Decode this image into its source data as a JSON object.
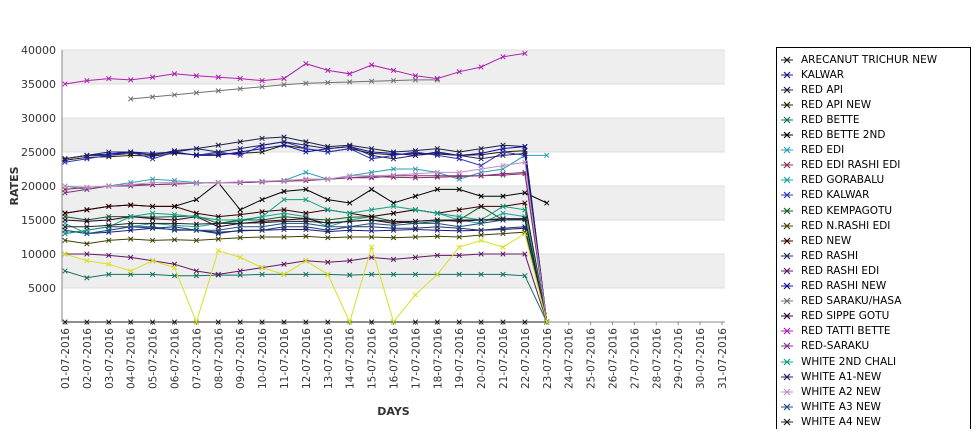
{
  "chart_data": {
    "type": "line",
    "title": "",
    "xlabel": "DAYS",
    "ylabel": "RATES",
    "ylim": [
      0,
      40000
    ],
    "yticks": [
      5000,
      10000,
      15000,
      20000,
      25000,
      30000,
      35000,
      40000
    ],
    "grid": "alternating horizontal bands",
    "legend_placement": "right",
    "categories": [
      "01-07-2016",
      "02-07-2016",
      "03-07-2016",
      "04-07-2016",
      "05-07-2016",
      "06-07-2016",
      "07-07-2016",
      "08-07-2016",
      "09-07-2016",
      "10-07-2016",
      "11-07-2016",
      "12-07-2016",
      "13-07-2016",
      "14-07-2016",
      "15-07-2016",
      "16-07-2016",
      "17-07-2016",
      "18-07-2016",
      "19-07-2016",
      "20-07-2016",
      "21-07-2016",
      "22-07-2016",
      "23-07-2016",
      "24-07-2016",
      "25-07-2016",
      "26-07-2016",
      "27-07-2016",
      "28-07-2016",
      "29-07-2016",
      "30-07-2016",
      "31-07-2016"
    ],
    "series": [
      {
        "name": "ARECANUT TRICHUR NEW",
        "color": "#1a1a1a",
        "values": [
          0,
          0,
          0,
          0,
          0,
          0,
          0,
          0,
          0,
          0,
          0,
          0,
          0,
          0,
          0,
          0,
          0,
          0,
          0,
          0,
          0,
          0,
          0,
          null,
          null,
          null,
          null,
          null,
          null,
          null,
          null
        ]
      },
      {
        "name": "KALWAR",
        "color": "#1a1a80",
        "values": [
          13500,
          13000,
          13200,
          13500,
          13800,
          13600,
          13500,
          13200,
          13400,
          13500,
          13600,
          13600,
          13300,
          13500,
          13400,
          13500,
          13600,
          13500,
          13400,
          13500,
          13600,
          13800,
          0,
          null,
          null,
          null,
          null,
          null,
          null,
          null,
          null
        ]
      },
      {
        "name": "RED API",
        "color": "#1a2040",
        "values": [
          24000,
          24500,
          24500,
          24800,
          24600,
          25000,
          25500,
          26000,
          26500,
          27000,
          27200,
          26500,
          25800,
          26000,
          25500,
          25000,
          25200,
          25500,
          25000,
          25500,
          26000,
          25800,
          0,
          null,
          null,
          null,
          null,
          null,
          null,
          null,
          null
        ]
      },
      {
        "name": "RED API NEW",
        "color": "#202000",
        "values": [
          23800,
          24200,
          24300,
          24500,
          24400,
          24800,
          24600,
          24700,
          24800,
          25000,
          26000,
          25500,
          25000,
          25500,
          24800,
          24600,
          24800,
          24700,
          24500,
          24600,
          25000,
          25200,
          0,
          null,
          null,
          null,
          null,
          null,
          null,
          null,
          null
        ]
      },
      {
        "name": "RED BETTE",
        "color": "#107060",
        "values": [
          7500,
          6500,
          7000,
          7000,
          7000,
          6800,
          6800,
          6900,
          6900,
          7000,
          7000,
          7000,
          7000,
          6900,
          7000,
          7000,
          7000,
          7000,
          7000,
          7000,
          7000,
          6800,
          0,
          null,
          null,
          null,
          null,
          null,
          null,
          null,
          null
        ]
      },
      {
        "name": "RED BETTE 2ND",
        "color": "#000000",
        "values": [
          16000,
          16500,
          17000,
          17200,
          17000,
          17000,
          18000,
          20500,
          16500,
          18000,
          19200,
          19500,
          18000,
          17500,
          19500,
          17500,
          18500,
          19500,
          19500,
          18500,
          18500,
          19000,
          17500,
          null,
          null,
          null,
          null,
          null,
          null,
          null,
          null
        ]
      },
      {
        "name": "RED EDI",
        "color": "#2aa0b0",
        "values": [
          20000,
          19500,
          20000,
          20500,
          21000,
          20800,
          20500,
          20500,
          20500,
          20700,
          20800,
          22000,
          21000,
          21500,
          22000,
          22500,
          22500,
          22000,
          21000,
          22000,
          22500,
          24500,
          24500,
          null,
          null,
          null,
          null,
          null,
          null,
          null,
          null
        ]
      },
      {
        "name": "RED EDI RASHI EDI",
        "color": "#803060",
        "values": [
          19500,
          19800,
          20000,
          20200,
          20200,
          20300,
          20400,
          20500,
          20500,
          20600,
          20700,
          20800,
          21000,
          21200,
          21400,
          21300,
          21200,
          21300,
          21400,
          21500,
          21600,
          21800,
          0,
          null,
          null,
          null,
          null,
          null,
          null,
          null,
          null
        ]
      },
      {
        "name": "RED GORABALU",
        "color": "#20a0a0",
        "values": [
          14500,
          13000,
          13500,
          14000,
          14500,
          14200,
          14000,
          14500,
          14800,
          15500,
          16000,
          15500,
          14000,
          15000,
          15500,
          16000,
          16500,
          16000,
          15000,
          14500,
          16000,
          15500,
          0,
          null,
          null,
          null,
          null,
          null,
          null,
          null,
          null
        ]
      },
      {
        "name": "RED KALWAR",
        "color": "#3030c0",
        "values": [
          23500,
          24000,
          24500,
          25000,
          24000,
          25000,
          24500,
          25000,
          24500,
          26000,
          26500,
          25500,
          25000,
          25500,
          24000,
          24500,
          25000,
          24500,
          24000,
          23000,
          25000,
          24500,
          0,
          null,
          null,
          null,
          null,
          null,
          null,
          null,
          null
        ]
      },
      {
        "name": "RED KEMPAGOTU",
        "color": "#106020",
        "values": [
          15500,
          15000,
          15500,
          15500,
          15400,
          15500,
          15600,
          14500,
          15000,
          15000,
          15500,
          15200,
          15000,
          15400,
          15500,
          14800,
          14500,
          14800,
          15000,
          17000,
          15000,
          15200,
          0,
          null,
          null,
          null,
          null,
          null,
          null,
          null,
          null
        ]
      },
      {
        "name": "RED N.RASHI EDI",
        "color": "#404000",
        "values": [
          12000,
          11500,
          12000,
          12200,
          12000,
          12100,
          12000,
          12200,
          12400,
          12500,
          12500,
          12600,
          12400,
          12500,
          12500,
          12400,
          12500,
          12600,
          12500,
          12800,
          13000,
          13200,
          0,
          null,
          null,
          null,
          null,
          null,
          null,
          null,
          null
        ]
      },
      {
        "name": "RED NEW",
        "color": "#300000",
        "values": [
          16000,
          16500,
          17000,
          17200,
          17000,
          17000,
          16000,
          15500,
          15800,
          16200,
          16500,
          16000,
          16500,
          16000,
          15500,
          16000,
          16500,
          16000,
          16500,
          17000,
          17000,
          17500,
          0,
          null,
          null,
          null,
          null,
          null,
          null,
          null,
          null
        ]
      },
      {
        "name": "RED RASHI",
        "color": "#203060",
        "values": [
          13000,
          13500,
          14000,
          14000,
          13800,
          14000,
          13500,
          13000,
          13500,
          13500,
          14000,
          14000,
          13500,
          14000,
          14000,
          13800,
          13800,
          14000,
          13800,
          13500,
          13800,
          14000,
          0,
          null,
          null,
          null,
          null,
          null,
          null,
          null,
          null
        ]
      },
      {
        "name": "RED RASHI EDI",
        "color": "#601860",
        "values": [
          10000,
          10000,
          9800,
          9500,
          9000,
          8500,
          7500,
          7000,
          7500,
          8000,
          8500,
          9000,
          8800,
          9000,
          9500,
          9200,
          9500,
          9800,
          9800,
          10000,
          10000,
          10000,
          0,
          null,
          null,
          null,
          null,
          null,
          null,
          null,
          null
        ]
      },
      {
        "name": "RED RASHI NEW",
        "color": "#1010a0",
        "values": [
          24000,
          24500,
          24700,
          25000,
          24800,
          25000,
          24500,
          24500,
          25000,
          25500,
          26000,
          25000,
          25500,
          25800,
          25000,
          24800,
          24500,
          25000,
          24500,
          24800,
          25500,
          25800,
          0,
          null,
          null,
          null,
          null,
          null,
          null,
          null,
          null
        ]
      },
      {
        "name": "RED SARAKU/HASA",
        "color": "#707070",
        "values": [
          null,
          null,
          null,
          32800,
          33100,
          33400,
          33700,
          34000,
          34300,
          34600,
          34900,
          35100,
          35200,
          35300,
          35400,
          35500,
          35600,
          35600,
          null,
          null,
          null,
          null,
          null,
          null,
          null,
          null,
          null,
          null,
          null,
          null,
          null
        ]
      },
      {
        "name": "RED SIPPE GOTU",
        "color": "#300030",
        "values": [
          15000,
          14800,
          15000,
          15500,
          15200,
          15000,
          15500,
          14000,
          14500,
          14800,
          15000,
          15200,
          14500,
          14800,
          15000,
          14500,
          14800,
          15000,
          14800,
          15000,
          15000,
          15200,
          0,
          null,
          null,
          null,
          null,
          null,
          null,
          null,
          null
        ]
      },
      {
        "name": "RED TATTI BETTE",
        "color": "#b020b0",
        "values": [
          35000,
          35500,
          35800,
          35600,
          36000,
          36500,
          36200,
          36000,
          35800,
          35500,
          35800,
          38000,
          37000,
          36500,
          37800,
          37000,
          36200,
          35800,
          36800,
          37500,
          39000,
          39500,
          null,
          null,
          null,
          null,
          null,
          null,
          null,
          null,
          null
        ]
      },
      {
        "name": "RED-SARAKU",
        "color": "#803080",
        "values": [
          19000,
          19500,
          20000,
          20000,
          20200,
          20300,
          20400,
          20500,
          20500,
          20600,
          20800,
          21000,
          21000,
          21200,
          21200,
          21500,
          21500,
          21500,
          21500,
          21500,
          21800,
          22000,
          0,
          null,
          null,
          null,
          null,
          null,
          null,
          null,
          null
        ]
      },
      {
        "name": "WHITE 2ND CHALI",
        "color": "#10a080",
        "values": [
          13000,
          13500,
          14000,
          15500,
          16000,
          15800,
          15500,
          15000,
          15000,
          15500,
          18000,
          18000,
          16500,
          16000,
          16500,
          17000,
          16500,
          16000,
          15500,
          15000,
          17000,
          16500,
          0,
          null,
          null,
          null,
          null,
          null,
          null,
          null,
          null
        ]
      },
      {
        "name": "WHITE A1-NEW",
        "color": "#202060",
        "values": [
          24000,
          24500,
          25000,
          25000,
          24500,
          25200,
          25500,
          25000,
          25500,
          26000,
          26500,
          26000,
          25500,
          25800,
          24500,
          24000,
          24500,
          24800,
          24500,
          24000,
          24500,
          24800,
          0,
          null,
          null,
          null,
          null,
          null,
          null,
          null,
          null
        ]
      },
      {
        "name": "WHITE A2 NEW",
        "color": "#c090c0",
        "values": [
          20000,
          19800,
          20000,
          20200,
          20500,
          20500,
          20400,
          20500,
          20600,
          20700,
          20800,
          21000,
          21000,
          21500,
          21500,
          21600,
          21800,
          22000,
          22000,
          22500,
          23000,
          23500,
          0,
          null,
          null,
          null,
          null,
          null,
          null,
          null,
          null
        ]
      },
      {
        "name": "WHITE A3 NEW",
        "color": "#205080",
        "values": [
          13500,
          13000,
          13500,
          14000,
          14000,
          13500,
          13500,
          13500,
          14000,
          14000,
          14500,
          14500,
          14000,
          14000,
          14500,
          14200,
          14500,
          14500,
          14000,
          14500,
          15000,
          15000,
          0,
          null,
          null,
          null,
          null,
          null,
          null,
          null,
          null
        ]
      },
      {
        "name": "WHITE A4 NEW",
        "color": "#202020",
        "values": [
          14000,
          14000,
          14200,
          14500,
          14500,
          14500,
          14400,
          14500,
          14500,
          14600,
          14800,
          14800,
          14600,
          14800,
          15000,
          14800,
          14800,
          15000,
          15000,
          15000,
          15200,
          15200,
          0,
          null,
          null,
          null,
          null,
          null,
          null,
          null,
          null
        ]
      },
      {
        "name": "",
        "color": "#d8e020",
        "values": [
          10000,
          9000,
          8500,
          7500,
          9000,
          8000,
          0,
          10500,
          9500,
          8000,
          7000,
          9000,
          7000,
          0,
          11000,
          0,
          4000,
          7000,
          11000,
          12000,
          11000,
          13000,
          0,
          null,
          null,
          null,
          null,
          null,
          null,
          null,
          null
        ]
      }
    ]
  }
}
